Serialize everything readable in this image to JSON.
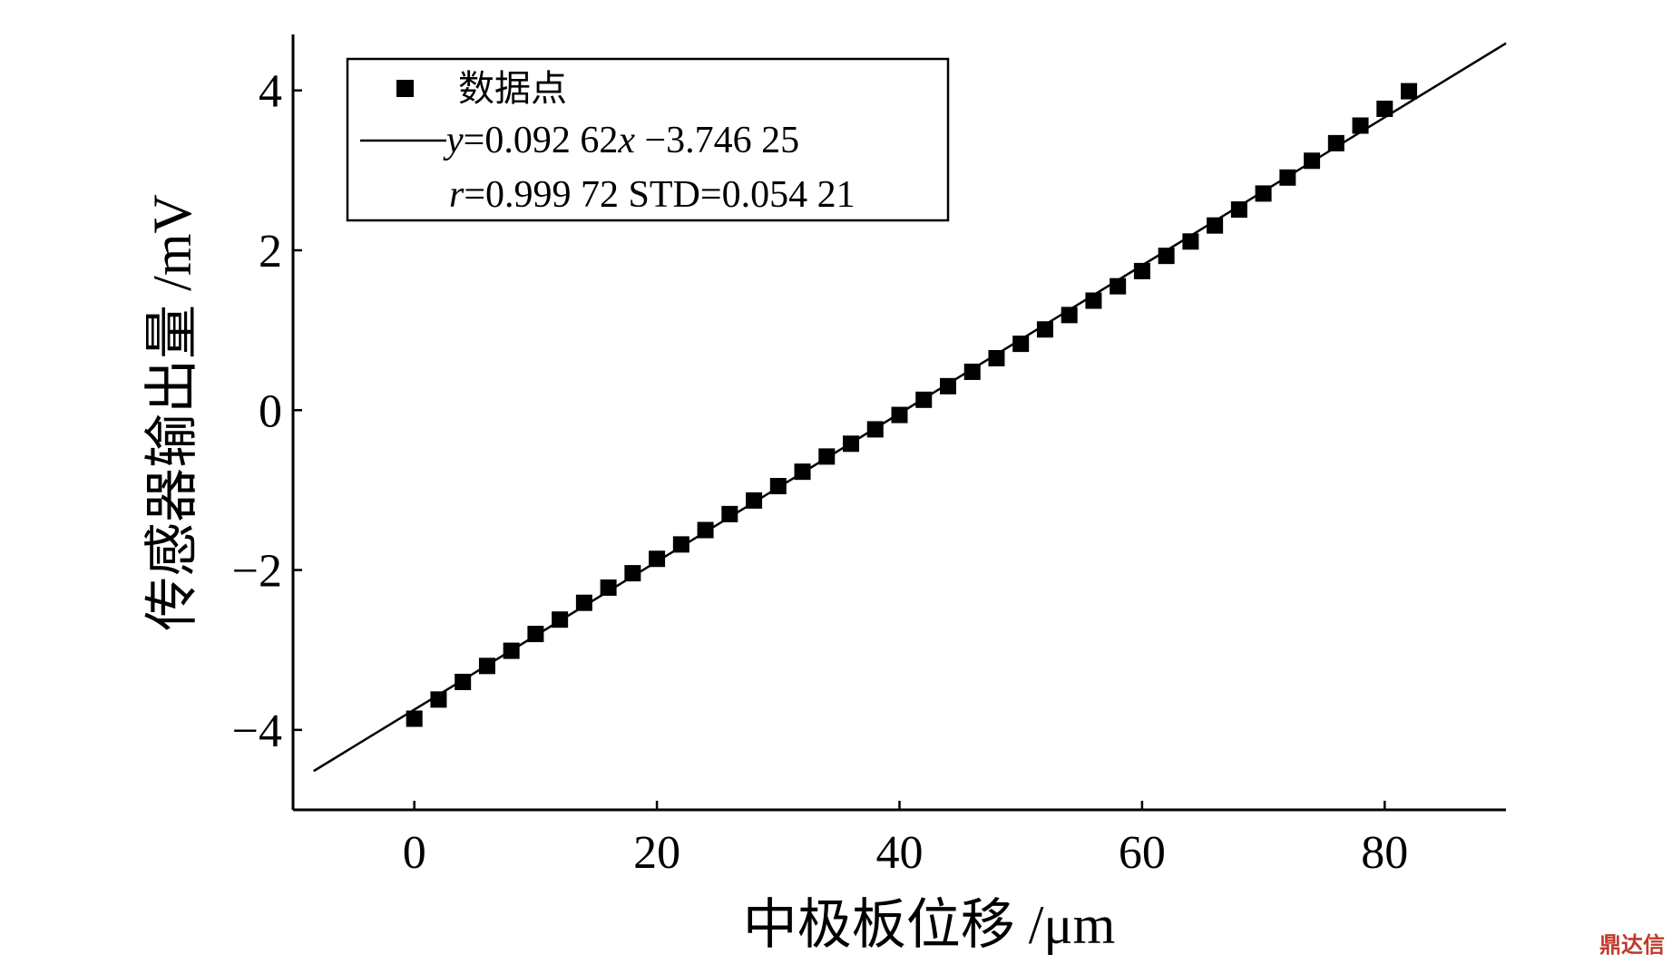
{
  "chart_data": {
    "type": "scatter",
    "xlabel": "中极板位移 /μm",
    "ylabel": "传感器输出量 /mV",
    "xlim": [
      -10,
      90
    ],
    "ylim": [
      -5,
      4.7
    ],
    "xticks": [
      0,
      20,
      40,
      60,
      80
    ],
    "yticks": [
      -4,
      -2,
      0,
      2,
      4
    ],
    "ytick_labels": [
      "−4",
      "−2",
      "0",
      "2",
      "4"
    ],
    "grid": false,
    "legend_position": "top-left",
    "series": [
      {
        "name": "数据点",
        "marker": "square",
        "x": [
          0,
          2,
          4,
          6,
          8,
          10,
          12,
          14,
          16,
          18,
          20,
          22,
          24,
          26,
          28,
          30,
          32,
          34,
          36,
          38,
          40,
          42,
          44,
          46,
          48,
          50,
          52,
          54,
          56,
          58,
          60,
          62,
          64,
          66,
          68,
          70,
          72,
          74,
          76,
          78,
          80,
          82
        ],
        "y": [
          -3.86,
          -3.62,
          -3.4,
          -3.2,
          -3.01,
          -2.8,
          -2.62,
          -2.41,
          -2.22,
          -2.04,
          -1.86,
          -1.68,
          -1.5,
          -1.3,
          -1.13,
          -0.95,
          -0.77,
          -0.58,
          -0.42,
          -0.24,
          -0.06,
          0.13,
          0.3,
          0.48,
          0.65,
          0.83,
          1.01,
          1.19,
          1.37,
          1.55,
          1.74,
          1.93,
          2.11,
          2.31,
          2.51,
          2.71,
          2.91,
          3.12,
          3.34,
          3.56,
          3.77,
          3.99
        ]
      },
      {
        "name": "fit",
        "type": "line",
        "slope": 0.09262,
        "intercept": -3.74625,
        "x_range": [
          -8.3,
          90
        ]
      }
    ],
    "legend": {
      "points_label": "数据点",
      "eq_y": "y",
      "eq_mid": "=0.092 62",
      "eq_x": "x",
      "eq_rest": " −3.746 25",
      "stat_r": "r",
      "stat_rest": "=0.999 72 STD=0.054 21"
    }
  },
  "watermark": "鼎达信",
  "colors": {
    "ink": "#000000",
    "watermark": "#c0392b"
  }
}
